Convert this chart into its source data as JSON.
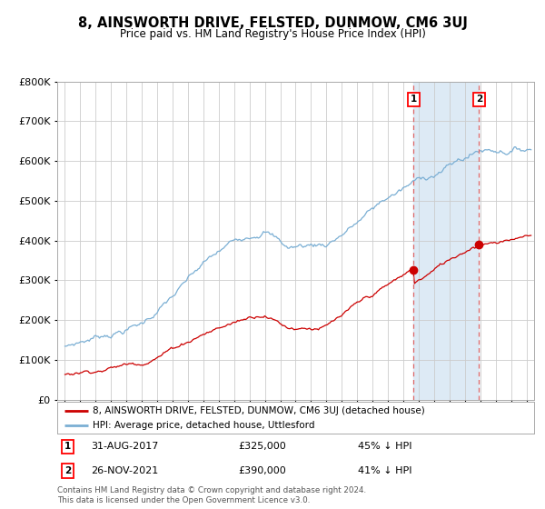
{
  "title": "8, AINSWORTH DRIVE, FELSTED, DUNMOW, CM6 3UJ",
  "subtitle": "Price paid vs. HM Land Registry's House Price Index (HPI)",
  "hpi_label": "HPI: Average price, detached house, Uttlesford",
  "property_label": "8, AINSWORTH DRIVE, FELSTED, DUNMOW, CM6 3UJ (detached house)",
  "hpi_color": "#7bafd4",
  "property_color": "#cc0000",
  "sale1_date_num": 2017.667,
  "sale1_price": 325000,
  "sale2_date_num": 2021.917,
  "sale2_price": 390000,
  "sale1_date_str": "31-AUG-2017",
  "sale2_date_str": "26-NOV-2021",
  "sale1_pct": "45% ↓ HPI",
  "sale2_pct": "41% ↓ HPI",
  "ylim": [
    0,
    800000
  ],
  "yticks": [
    0,
    100000,
    200000,
    300000,
    400000,
    500000,
    600000,
    700000,
    800000
  ],
  "shade_start": 2017.667,
  "shade_end": 2021.917,
  "shade_color": "#ddeaf5",
  "vline1_x": 2017.667,
  "vline2_x": 2021.917,
  "vline_color": "#dd6666",
  "footnote": "Contains HM Land Registry data © Crown copyright and database right 2024.\nThis data is licensed under the Open Government Licence v3.0.",
  "background_color": "#ffffff",
  "grid_color": "#cccccc",
  "xmin": 1994.5,
  "xmax": 2025.5
}
